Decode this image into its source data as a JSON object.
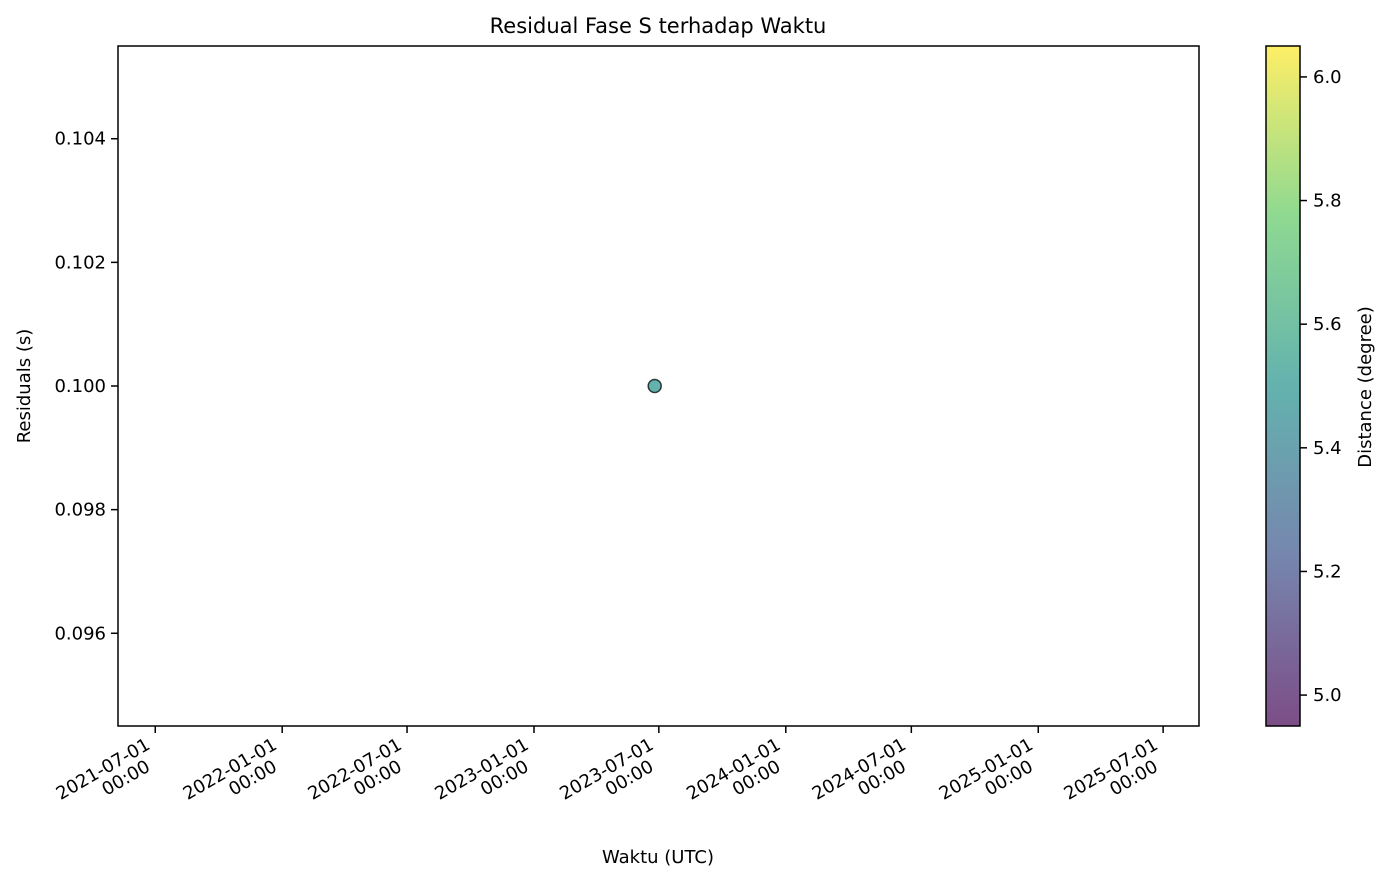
{
  "chart_data": {
    "type": "scatter",
    "title": "Residual Fase S terhadap Waktu",
    "xlabel": "Waktu (UTC)",
    "ylabel": "Residuals (s)",
    "x_type": "datetime",
    "xlim": [
      "2021-05-08",
      "2025-08-22"
    ],
    "ylim": [
      0.0945,
      0.1055
    ],
    "x_ticks": [
      {
        "value": "2021-07-01",
        "label_line1": "2021-07-01",
        "label_line2": "00:00"
      },
      {
        "value": "2022-01-01",
        "label_line1": "2022-01-01",
        "label_line2": "00:00"
      },
      {
        "value": "2022-07-01",
        "label_line1": "2022-07-01",
        "label_line2": "00:00"
      },
      {
        "value": "2023-01-01",
        "label_line1": "2023-01-01",
        "label_line2": "00:00"
      },
      {
        "value": "2023-07-01",
        "label_line1": "2023-07-01",
        "label_line2": "00:00"
      },
      {
        "value": "2024-01-01",
        "label_line1": "2024-01-01",
        "label_line2": "00:00"
      },
      {
        "value": "2024-07-01",
        "label_line1": "2024-07-01",
        "label_line2": "00:00"
      },
      {
        "value": "2025-01-01",
        "label_line1": "2025-01-01",
        "label_line2": "00:00"
      },
      {
        "value": "2025-07-01",
        "label_line1": "2025-07-01",
        "label_line2": "00:00"
      }
    ],
    "y_ticks": [
      {
        "value": 0.096,
        "label": "0.096"
      },
      {
        "value": 0.098,
        "label": "0.098"
      },
      {
        "value": 0.1,
        "label": "0.100"
      },
      {
        "value": 0.102,
        "label": "0.102"
      },
      {
        "value": 0.104,
        "label": "0.104"
      }
    ],
    "points": [
      {
        "x": "2023-06-25",
        "y": 0.1,
        "color_value": 5.5
      }
    ],
    "grid": false,
    "marker_alpha": 0.7,
    "marker_edge_color": "#000000",
    "colorbar": {
      "label": "Distance (degree)",
      "colormap": "viridis",
      "range": [
        4.95,
        6.05
      ],
      "ticks": [
        {
          "value": 5.0,
          "label": "5.0"
        },
        {
          "value": 5.2,
          "label": "5.2"
        },
        {
          "value": 5.4,
          "label": "5.4"
        },
        {
          "value": 5.6,
          "label": "5.6"
        },
        {
          "value": 5.8,
          "label": "5.8"
        },
        {
          "value": 6.0,
          "label": "6.0"
        }
      ],
      "stops": [
        "#440154",
        "#3b528b",
        "#21918c",
        "#5ec962",
        "#fde725"
      ],
      "alpha": 0.7
    }
  }
}
